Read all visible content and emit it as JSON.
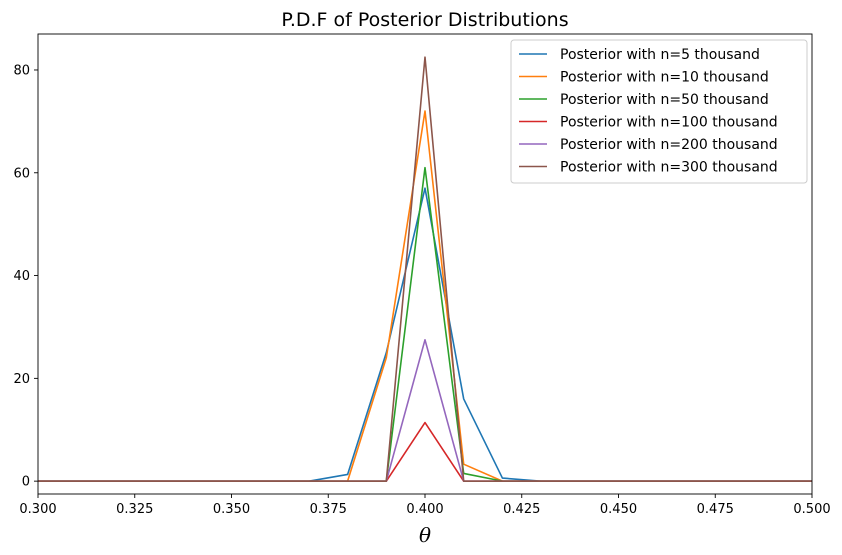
{
  "chart_data": {
    "type": "line",
    "title": "P.D.F of Posterior Distributions",
    "xlabel": "θ",
    "ylabel": "",
    "xlim": [
      0.3,
      0.5
    ],
    "ylim": [
      -2.5,
      87
    ],
    "xticks": [
      "0.300",
      "0.325",
      "0.350",
      "0.375",
      "0.400",
      "0.425",
      "0.450",
      "0.475",
      "0.500"
    ],
    "xtick_values": [
      0.3,
      0.325,
      0.35,
      0.375,
      0.4,
      0.425,
      0.45,
      0.475,
      0.5
    ],
    "yticks": [
      "0",
      "20",
      "40",
      "60",
      "80"
    ],
    "ytick_values": [
      0,
      20,
      40,
      60,
      80
    ],
    "grid": false,
    "legend_position": "top-right",
    "series": [
      {
        "name": "Posterior with n=5 thousand",
        "color": "#1f77b4",
        "x": [
          0.3,
          0.37,
          0.38,
          0.39,
          0.4,
          0.41,
          0.42,
          0.43,
          0.5
        ],
        "y": [
          0,
          0,
          1.3,
          25,
          57,
          16,
          0.6,
          0,
          0
        ]
      },
      {
        "name": "Posterior with n=10 thousand",
        "color": "#ff7f0e",
        "x": [
          0.3,
          0.38,
          0.39,
          0.4,
          0.41,
          0.42,
          0.5
        ],
        "y": [
          0,
          0,
          24,
          72,
          3.3,
          0,
          0
        ]
      },
      {
        "name": "Posterior with n=50 thousand",
        "color": "#2ca02c",
        "x": [
          0.3,
          0.39,
          0.4,
          0.41,
          0.42,
          0.5
        ],
        "y": [
          0,
          0,
          61,
          1.5,
          0,
          0
        ]
      },
      {
        "name": "Posterior with n=100 thousand",
        "color": "#d62728",
        "x": [
          0.3,
          0.39,
          0.4,
          0.41,
          0.5
        ],
        "y": [
          0,
          0,
          11.4,
          0,
          0
        ]
      },
      {
        "name": "Posterior with n=200 thousand",
        "color": "#9467bd",
        "x": [
          0.3,
          0.39,
          0.4,
          0.41,
          0.5
        ],
        "y": [
          0,
          0,
          27.5,
          0,
          0
        ]
      },
      {
        "name": "Posterior with n=300 thousand",
        "color": "#8c564b",
        "x": [
          0.3,
          0.39,
          0.4,
          0.41,
          0.5
        ],
        "y": [
          0,
          0,
          82.5,
          0,
          0
        ]
      }
    ]
  }
}
